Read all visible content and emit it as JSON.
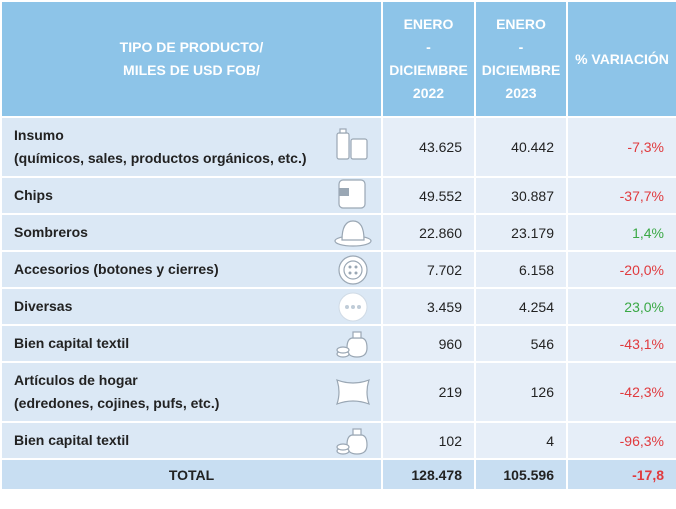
{
  "table": {
    "header": {
      "product": [
        "TIPO DE PRODUCTO/",
        "MILES DE USD FOB/"
      ],
      "col_2022": [
        "ENERO",
        "-",
        "DICIEMBRE",
        "2022"
      ],
      "col_2023": [
        "ENERO",
        "-",
        "DICIEMBRE",
        "2023"
      ],
      "variation": "% VARIACIÓN"
    },
    "rows": [
      {
        "label": [
          "Insumo",
          "(químicos, sales, productos orgánicos, etc.)"
        ],
        "v2022": "43.625",
        "v2023": "40.442",
        "variation": "-7,3%",
        "variation_color": "#e03a3e"
      },
      {
        "label": [
          "Chips"
        ],
        "v2022": "49.552",
        "v2023": "30.887",
        "variation": "-37,7%",
        "variation_color": "#e03a3e"
      },
      {
        "label": [
          "Sombreros"
        ],
        "v2022": "22.860",
        "v2023": "23.179",
        "variation": "1,4%",
        "variation_color": "#3aa845"
      },
      {
        "label": [
          "Accesorios (botones y cierres)"
        ],
        "v2022": "7.702",
        "v2023": "6.158",
        "variation": "-20,0%",
        "variation_color": "#e03a3e"
      },
      {
        "label": [
          "Diversas"
        ],
        "v2022": "3.459",
        "v2023": "4.254",
        "variation": "23,0%",
        "variation_color": "#3aa845"
      },
      {
        "label": [
          "Bien capital textil"
        ],
        "v2022": "960",
        "v2023": "546",
        "variation": "-43,1%",
        "variation_color": "#e03a3e"
      },
      {
        "label": [
          "Artículos de hogar",
          "(edredones, cojines, pufs, etc.)"
        ],
        "v2022": "219",
        "v2023": "126",
        "variation": "-42,3%",
        "variation_color": "#e03a3e"
      },
      {
        "label": [
          "Bien capital textil"
        ],
        "v2022": "102",
        "v2023": "4",
        "variation": "-96,3%",
        "variation_color": "#e03a3e"
      }
    ],
    "total": {
      "label": "TOTAL",
      "v2022": "128.478",
      "v2023": "105.596",
      "variation": "-17,8",
      "variation_color": "#e03a3e"
    }
  }
}
